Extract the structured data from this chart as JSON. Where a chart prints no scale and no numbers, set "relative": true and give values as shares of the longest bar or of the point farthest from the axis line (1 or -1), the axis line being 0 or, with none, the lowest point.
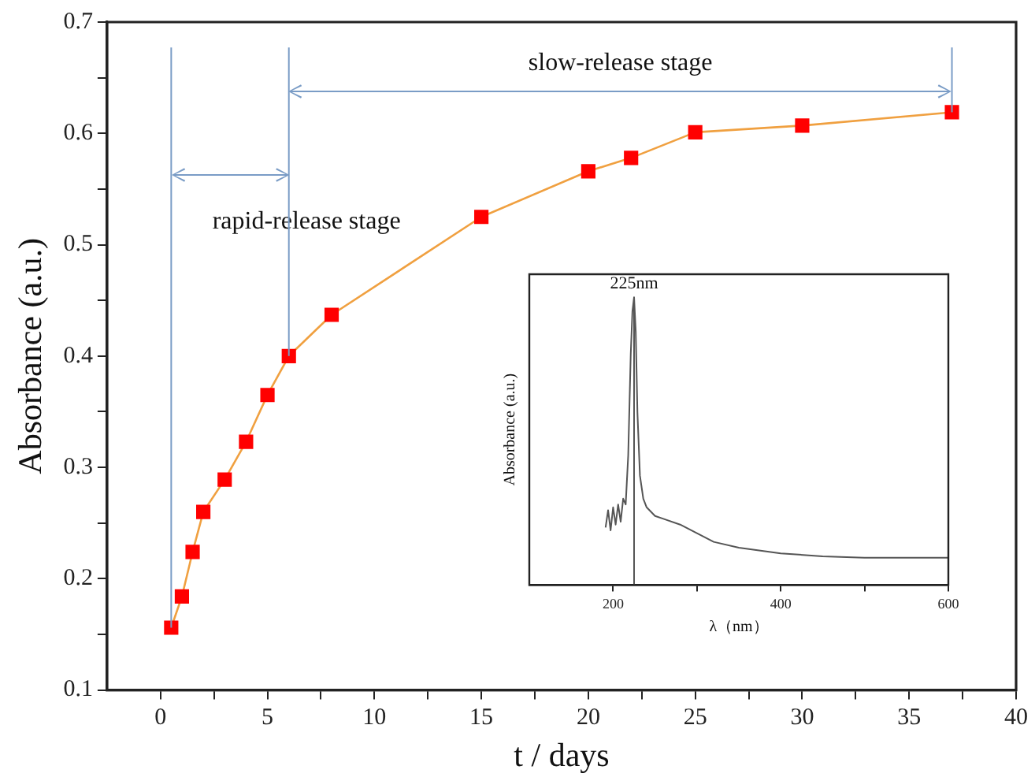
{
  "chart_data": [
    {
      "type": "line",
      "xlabel": "t / days",
      "ylabel": "Absorbance (a.u.)",
      "x": [
        0.5,
        1,
        1.5,
        2,
        3,
        4,
        5,
        6,
        8,
        15,
        20,
        22,
        25,
        30,
        37
      ],
      "series": [
        {
          "color": "#f0a040",
          "colors": [
            "#ff0000",
            "#ff0000",
            "#ff0000",
            "#ff0000",
            "#ff0000",
            "#ff0000",
            "#ff0000",
            "#ff0000",
            "#ff0000",
            "#ff0000",
            "#ff0000",
            "#ff0000",
            "#ff0000",
            "#ff0000",
            "#ff0000"
          ],
          "values": [
            0.156,
            0.184,
            0.224,
            0.26,
            0.289,
            0.323,
            0.365,
            0.4,
            0.437,
            0.525,
            0.566,
            0.578,
            0.601,
            0.607,
            0.619
          ]
        }
      ],
      "xlim": [
        -2.5,
        40
      ],
      "xticks": [
        0,
        {
          "value": 2.5,
          "label": null
        },
        5,
        {
          "value": 7.5,
          "label": null
        },
        10,
        {
          "value": 12.5,
          "label": null
        },
        15,
        {
          "value": 17.5,
          "label": null
        },
        20,
        {
          "value": 22.5,
          "label": null
        },
        25,
        {
          "value": 27.5,
          "label": null
        },
        30,
        {
          "value": 32.5,
          "label": null
        },
        35,
        {
          "value": 37.5,
          "label": null
        },
        40
      ],
      "ylim": [
        0.1,
        0.7
      ],
      "yticks": [
        0.1,
        {
          "value": 0.15,
          "label": null
        },
        0.2,
        {
          "value": 0.25,
          "label": null
        },
        0.3,
        {
          "value": 0.35,
          "label": null
        },
        0.4,
        {
          "value": 0.45,
          "label": null
        },
        0.5,
        {
          "value": 0.55,
          "label": null
        },
        0.6,
        {
          "value": 0.65,
          "label": null
        },
        0.7
      ],
      "ref_lines": [
        {
          "axis": "x",
          "value": 0.5,
          "color": "#7a9cc6"
        },
        {
          "axis": "x",
          "value": 6,
          "color": "#7a9cc6"
        },
        {
          "axis": "x",
          "value": 37,
          "color": "#7a9cc6"
        }
      ],
      "annotations": [
        "rapid-release stage",
        "slow-release stage"
      ],
      "marker": "square",
      "grid": false,
      "legend": false
    },
    {
      "type": "line",
      "xlabel": "λ（nm）",
      "ylabel": "Absorbance (a.u.)",
      "relative": true,
      "series": [
        {
          "color": "#555555",
          "x": [
            191,
            194,
            197,
            200,
            203,
            206,
            209,
            212,
            215,
            218,
            221,
            223,
            225,
            227,
            229,
            232,
            236,
            240,
            250,
            260,
            280,
            300,
            320,
            350,
            400,
            450,
            500,
            550,
            600
          ],
          "values": [
            0.2,
            0.26,
            0.19,
            0.27,
            0.21,
            0.28,
            0.22,
            0.3,
            0.28,
            0.45,
            0.8,
            0.95,
            1.0,
            0.88,
            0.6,
            0.38,
            0.3,
            0.27,
            0.24,
            0.23,
            0.21,
            0.18,
            0.15,
            0.13,
            0.11,
            0.1,
            0.095,
            0.095,
            0.095
          ]
        }
      ],
      "xlim": [
        100,
        600
      ],
      "xticks": [
        200,
        {
          "value": 300,
          "label": null
        },
        400,
        {
          "value": 500,
          "label": null
        },
        600
      ],
      "ref_lines": [
        {
          "axis": "x",
          "value": 225,
          "label": "225nm",
          "color": "#555555"
        }
      ],
      "tick_labels": "x",
      "marker": "none",
      "grid": false,
      "legend": false
    }
  ]
}
